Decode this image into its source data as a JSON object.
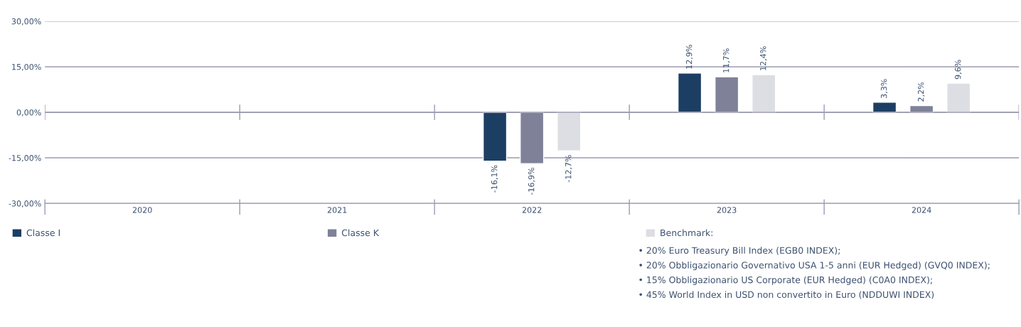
{
  "chart_data": {
    "type": "bar",
    "categories": [
      "2020",
      "2021",
      "2022",
      "2023",
      "2024"
    ],
    "series": [
      {
        "name": "Classe I",
        "color": "#1d3e63",
        "values": [
          null,
          null,
          -16.1,
          12.9,
          3.3
        ],
        "value_labels": [
          null,
          null,
          "-16,1%",
          "12,9%",
          "3,3%"
        ]
      },
      {
        "name": "Classe K",
        "color": "#7f8199",
        "values": [
          null,
          null,
          -16.9,
          11.7,
          2.2
        ],
        "value_labels": [
          null,
          null,
          "-16,9%",
          "11,7%",
          "2,2%"
        ]
      },
      {
        "name": "Benchmark:",
        "color": "#dddee3",
        "values": [
          null,
          null,
          -12.7,
          12.4,
          9.6
        ],
        "value_labels": [
          null,
          null,
          "-12,7%",
          "12,4%",
          "9,6%"
        ]
      }
    ],
    "ylim": [
      -30,
      30
    ],
    "yticks": [
      {
        "value": -30,
        "label": "-30,00%"
      },
      {
        "value": -15,
        "label": "-15,00%"
      },
      {
        "value": 0,
        "label": "0,00%"
      },
      {
        "value": 15,
        "label": "15,00%"
      },
      {
        "value": 30,
        "label": "30,00%"
      }
    ],
    "grid": "y",
    "legend": "bottom",
    "annotations": [
      "• 20% Euro Treasury Bill Index (EGB0 INDEX);",
      "• 20% Obbligazionario Governativo USA 1-5 anni (EUR Hedged) (GVQ0 INDEX);",
      "• 15% Obbligazionario US Corporate (EUR Hedged) (C0A0 INDEX);",
      "• 45% World Index in USD non convertito in Euro (NDDUWI INDEX)"
    ]
  }
}
